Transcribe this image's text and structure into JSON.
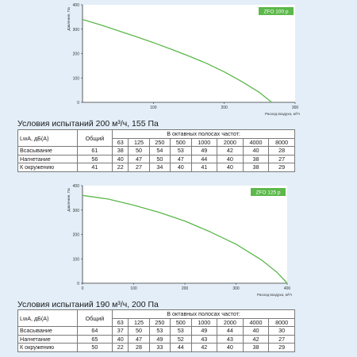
{
  "charts": [
    {
      "title": "ZFO 100 р",
      "ylabel": "Давление, Па",
      "xlabel": "Расход воздуха, м³/ч",
      "xlim": [
        0,
        300
      ],
      "ylim": [
        0,
        400
      ],
      "x_ticks": [
        "100",
        "200",
        "300"
      ],
      "y_ticks": [
        "0",
        "100",
        "200",
        "300",
        "400"
      ]
    },
    {
      "title": "ZFO 125 р",
      "ylabel": "Давление, Па",
      "xlabel": "Расход воздуха, м³/ч",
      "xlim": [
        0,
        400
      ],
      "ylim": [
        0,
        400
      ],
      "x_ticks": [
        "0",
        "100",
        "200",
        "300",
        "400"
      ],
      "y_ticks": [
        "0",
        "100",
        "200",
        "300",
        "400"
      ]
    }
  ],
  "chart_data": [
    {
      "type": "line",
      "title": "ZFO 100 р",
      "xlabel": "Расход воздуха, м³/ч",
      "ylabel": "Давление, Па",
      "xlim": [
        0,
        300
      ],
      "ylim": [
        0,
        400
      ],
      "series": [
        {
          "color": "#5cb84a",
          "x": [
            0,
            25,
            50,
            75,
            100,
            125,
            150,
            175,
            200,
            225,
            250,
            267
          ],
          "y": [
            340,
            318,
            294,
            270,
            245,
            218,
            190,
            160,
            125,
            85,
            40,
            0
          ]
        }
      ]
    },
    {
      "type": "line",
      "title": "ZFO 125 р",
      "xlabel": "Расход воздуха, м³/ч",
      "ylabel": "Давление, Па",
      "xlim": [
        0,
        400
      ],
      "ylim": [
        0,
        400
      ],
      "series": [
        {
          "color": "#5cb84a",
          "x": [
            0,
            50,
            100,
            150,
            200,
            250,
            300,
            350,
            380,
            400
          ],
          "y": [
            360,
            345,
            320,
            290,
            255,
            210,
            160,
            95,
            45,
            0
          ]
        }
      ]
    }
  ],
  "tables": [
    {
      "condition": "Условия испытаний 200 м³/ч, 155 Па",
      "col_lwa": "LwA, дБ(A)",
      "col_total": "Общий",
      "col_octave": "В октавных полосах частот:",
      "freqs": [
        "63",
        "125",
        "250",
        "500",
        "1000",
        "2000",
        "4000",
        "8000"
      ],
      "rows": [
        {
          "label": "Всасывание",
          "total": "61",
          "values": [
            "38",
            "50",
            "54",
            "53",
            "49",
            "42",
            "40",
            "28"
          ]
        },
        {
          "label": "Нагнетание",
          "total": "56",
          "values": [
            "40",
            "47",
            "50",
            "47",
            "44",
            "40",
            "38",
            "27"
          ]
        },
        {
          "label": "К окружению",
          "total": "41",
          "values": [
            "22",
            "27",
            "34",
            "40",
            "41",
            "40",
            "38",
            "29"
          ]
        }
      ]
    },
    {
      "condition": "Условия испытаний 190 м³/ч, 200 Па",
      "col_lwa": "LwA, дБ(A)",
      "col_total": "Общий",
      "col_octave": "В октавных полосах частот:",
      "freqs": [
        "63",
        "125",
        "250",
        "500",
        "1000",
        "2000",
        "4000",
        "8000"
      ],
      "rows": [
        {
          "label": "Всасывание",
          "total": "64",
          "values": [
            "37",
            "50",
            "53",
            "53",
            "49",
            "44",
            "40",
            "30"
          ]
        },
        {
          "label": "Нагнетание",
          "total": "65",
          "values": [
            "40",
            "47",
            "49",
            "52",
            "43",
            "43",
            "42",
            "27"
          ]
        },
        {
          "label": "К окружению",
          "total": "50",
          "values": [
            "22",
            "28",
            "33",
            "44",
            "42",
            "40",
            "38",
            "29"
          ]
        }
      ]
    }
  ]
}
